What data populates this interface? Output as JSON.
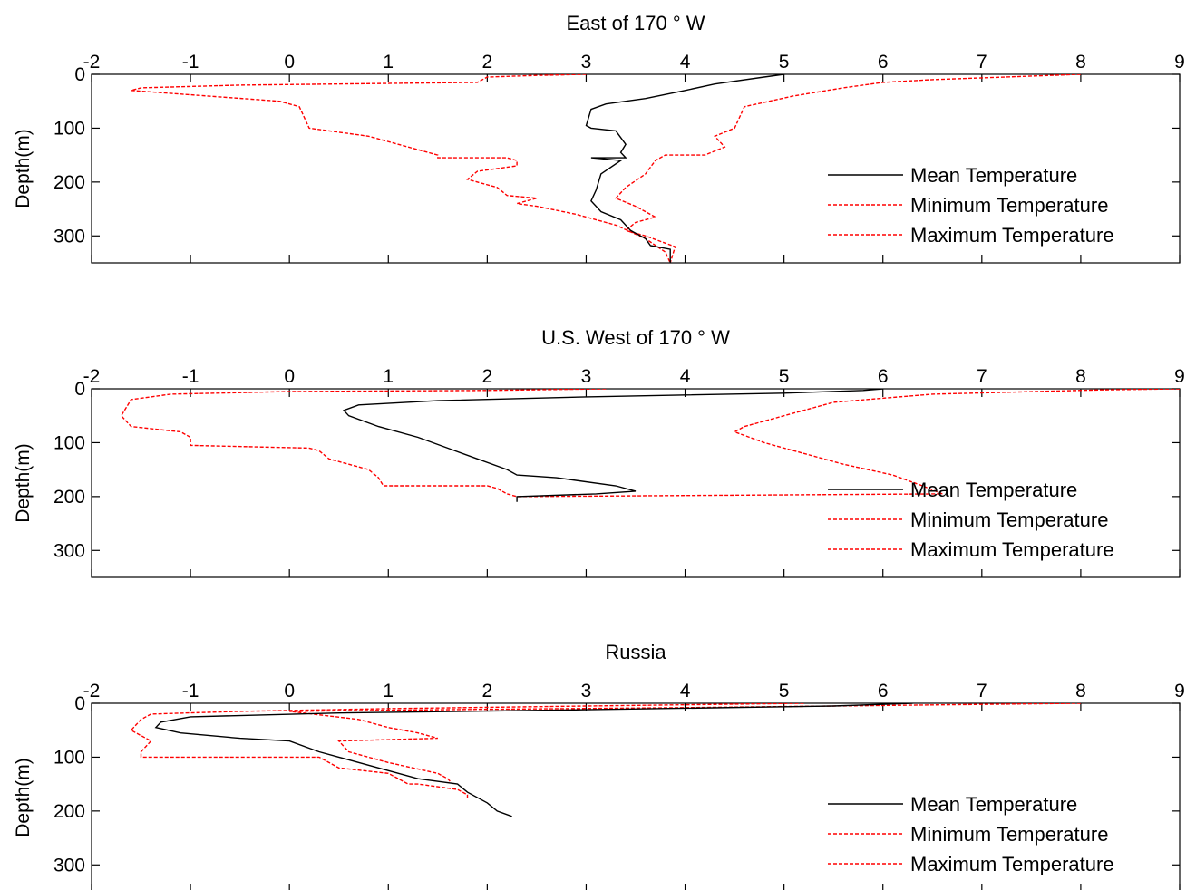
{
  "chart_data": [
    {
      "type": "line",
      "title": "East of 170 ° W",
      "xlabel": "",
      "ylabel": "Depth(m)",
      "xlim": [
        -2,
        9
      ],
      "ylim": [
        0,
        350
      ],
      "y_reversed": true,
      "x_axis_position": "top",
      "x_ticks": [
        "-2",
        "-1",
        "0",
        "1",
        "2",
        "3",
        "4",
        "5",
        "6",
        "7",
        "8",
        "9"
      ],
      "y_ticks": [
        "0",
        "100",
        "200",
        "300"
      ],
      "legend_position": "right",
      "series": [
        {
          "name": "Mean Temperature",
          "color": "#000000",
          "style": "solid",
          "x": [
            5.0,
            4.8,
            4.3,
            4.0,
            3.6,
            3.2,
            3.05,
            3.0,
            3.05,
            3.3,
            3.4,
            3.35,
            3.4,
            3.05,
            3.35,
            3.15,
            3.1,
            3.05,
            3.1,
            3.15,
            3.35,
            3.45,
            3.6,
            3.65,
            3.85,
            3.85
          ],
          "y": [
            0,
            5,
            18,
            30,
            45,
            55,
            65,
            95,
            100,
            105,
            130,
            145,
            155,
            155,
            160,
            185,
            215,
            235,
            245,
            255,
            270,
            290,
            305,
            318,
            325,
            350
          ]
        },
        {
          "name": "Minimum Temperature",
          "color": "#ff0000",
          "style": "dashed",
          "x": [
            3.0,
            2.5,
            2.0,
            1.9,
            -0.5,
            -1.5,
            -1.6,
            -0.1,
            0.1,
            0.2,
            0.8,
            1.2,
            1.5,
            1.5,
            2.2,
            2.3,
            2.3,
            1.9,
            1.8,
            2.1,
            2.2,
            2.5,
            2.3,
            2.5,
            2.9,
            3.3,
            3.6,
            3.8,
            3.85
          ],
          "y": [
            0,
            2,
            5,
            15,
            20,
            25,
            30,
            50,
            60,
            100,
            115,
            135,
            150,
            155,
            155,
            160,
            170,
            180,
            195,
            210,
            225,
            230,
            240,
            245,
            260,
            280,
            305,
            330,
            350
          ]
        },
        {
          "name": "Maximum Temperature",
          "color": "#ff0000",
          "style": "dashed",
          "x": [
            8.0,
            6.5,
            6.0,
            5.6,
            5.1,
            4.6,
            4.5,
            4.3,
            4.4,
            4.2,
            3.8,
            3.7,
            3.6,
            3.4,
            3.3,
            3.5,
            3.7,
            3.5,
            3.4,
            3.6,
            3.9,
            3.85
          ],
          "y": [
            0,
            10,
            15,
            25,
            40,
            60,
            100,
            115,
            135,
            150,
            150,
            160,
            185,
            210,
            230,
            245,
            265,
            275,
            290,
            300,
            320,
            350
          ]
        }
      ]
    },
    {
      "type": "line",
      "title": "U.S. West of 170 ° W",
      "xlabel": "",
      "ylabel": "Depth(m)",
      "xlim": [
        -2,
        9
      ],
      "ylim": [
        0,
        350
      ],
      "y_reversed": true,
      "x_axis_position": "top",
      "x_ticks": [
        "-2",
        "-1",
        "0",
        "1",
        "2",
        "3",
        "4",
        "5",
        "6",
        "7",
        "8",
        "9"
      ],
      "y_ticks": [
        "0",
        "100",
        "200",
        "300"
      ],
      "legend_position": "right",
      "series": [
        {
          "name": "Mean Temperature",
          "color": "#000000",
          "style": "solid",
          "x": [
            6.0,
            5.8,
            5.0,
            3.0,
            1.5,
            0.7,
            0.55,
            0.6,
            0.9,
            1.3,
            1.6,
            1.9,
            2.2,
            2.3,
            2.7,
            3.3,
            3.5,
            3.1,
            2.3,
            2.3
          ],
          "y": [
            0,
            3,
            8,
            15,
            22,
            30,
            40,
            50,
            70,
            90,
            110,
            130,
            150,
            160,
            165,
            180,
            190,
            195,
            200,
            210
          ]
        },
        {
          "name": "Minimum Temperature",
          "color": "#ff0000",
          "style": "dashed",
          "x": [
            3.2,
            2.0,
            0.0,
            -1.2,
            -1.6,
            -1.7,
            -1.6,
            -1.1,
            -1.0,
            -1.0,
            0.2,
            0.3,
            0.4,
            0.6,
            0.8,
            0.9,
            0.95,
            2.0,
            2.1,
            2.2,
            2.3
          ],
          "y": [
            0,
            3,
            5,
            10,
            20,
            50,
            70,
            80,
            90,
            105,
            110,
            115,
            130,
            140,
            150,
            165,
            180,
            180,
            185,
            195,
            200
          ]
        },
        {
          "name": "Maximum Temperature",
          "color": "#ff0000",
          "style": "dashed",
          "x": [
            9.0,
            8.2,
            6.5,
            5.5,
            5.0,
            4.6,
            4.5,
            4.8,
            5.2,
            5.6,
            6.1,
            6.4,
            6.6,
            2.3
          ],
          "y": [
            0,
            2,
            10,
            25,
            50,
            70,
            80,
            100,
            120,
            140,
            160,
            180,
            195,
            200
          ]
        }
      ]
    },
    {
      "type": "line",
      "title": "Russia",
      "xlabel": "",
      "ylabel": "Depth(m)",
      "xlim": [
        -2,
        9
      ],
      "ylim": [
        0,
        350
      ],
      "y_reversed": true,
      "x_axis_position": "top",
      "x_ticks": [
        "-2",
        "-1",
        "0",
        "1",
        "2",
        "3",
        "4",
        "5",
        "6",
        "7",
        "8",
        "9"
      ],
      "y_ticks": [
        "0",
        "100",
        "200",
        "300"
      ],
      "legend_position": "right",
      "series": [
        {
          "name": "Mean Temperature",
          "color": "#000000",
          "style": "solid",
          "x": [
            6.3,
            5.5,
            3.0,
            0.5,
            -1.0,
            -1.3,
            -1.35,
            -1.1,
            -0.5,
            0.0,
            0.3,
            0.5,
            0.9,
            1.3,
            1.7,
            1.8,
            2.0,
            2.1,
            2.25
          ],
          "y": [
            0,
            5,
            12,
            18,
            25,
            35,
            45,
            55,
            65,
            70,
            90,
            100,
            120,
            140,
            150,
            165,
            185,
            200,
            210
          ]
        },
        {
          "name": "Minimum Temperature",
          "color": "#ff0000",
          "style": "dashed",
          "x": [
            5.2,
            3.0,
            1.0,
            -0.5,
            -1.4,
            -1.5,
            -1.6,
            -1.4,
            -1.5,
            -1.5,
            0.3,
            0.5,
            1.0,
            1.1,
            1.2,
            1.3,
            1.5,
            1.7,
            1.8,
            1.8
          ],
          "y": [
            0,
            5,
            10,
            15,
            20,
            30,
            50,
            70,
            90,
            100,
            100,
            120,
            130,
            140,
            150,
            150,
            155,
            160,
            170,
            180
          ]
        },
        {
          "name": "Maximum Temperature",
          "color": "#ff0000",
          "style": "dashed",
          "x": [
            8.0,
            6.5,
            4.0,
            1.5,
            0.0,
            0.7,
            1.0,
            1.3,
            1.5,
            0.5,
            0.6,
            1.0,
            1.5,
            1.6,
            1.65
          ],
          "y": [
            0,
            3,
            8,
            12,
            15,
            30,
            45,
            55,
            65,
            70,
            90,
            110,
            130,
            140,
            150
          ]
        }
      ]
    }
  ]
}
